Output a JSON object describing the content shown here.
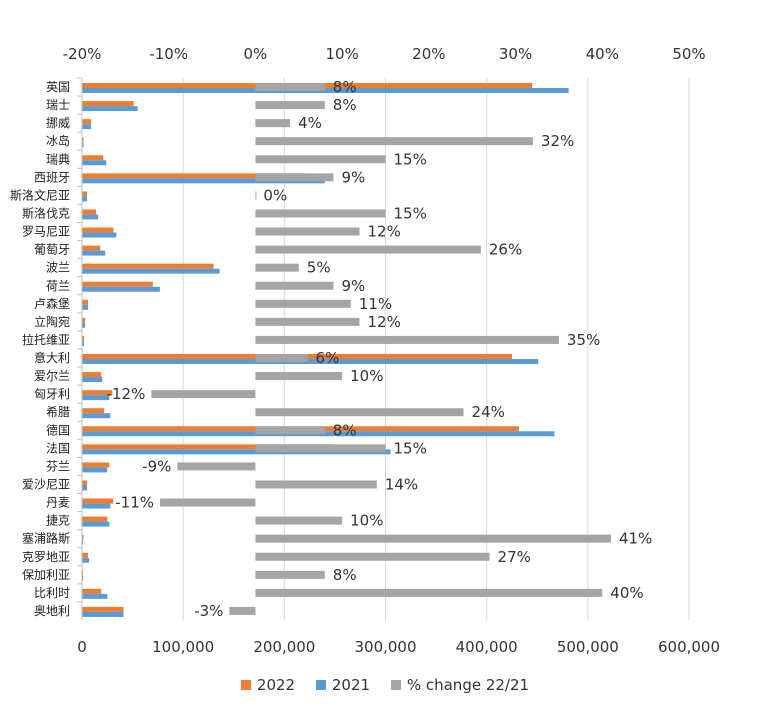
{
  "chart_data": {
    "type": "bar",
    "orientation": "horizontal",
    "categories": [
      "英国",
      "瑞士",
      "挪威",
      "冰岛",
      "瑞典",
      "西班牙",
      "斯洛文尼亚",
      "斯洛伐克",
      "罗马尼亚",
      "葡萄牙",
      "波兰",
      "荷兰",
      "卢森堡",
      "立陶宛",
      "拉托维亚",
      "意大利",
      "爱尔兰",
      "匈牙利",
      "希腊",
      "德国",
      "法国",
      "芬兰",
      "爱沙尼亚",
      "丹麦",
      "捷克",
      "塞浦路斯",
      "克罗地亚",
      "保加利亚",
      "比利时",
      "奥地利"
    ],
    "series": [
      {
        "name": "2022",
        "color": "#ED7D31",
        "axis": "bottom",
        "values": [
          445000,
          51000,
          9000,
          1500,
          21000,
          220000,
          5000,
          14000,
          31000,
          18000,
          130000,
          70000,
          6000,
          3000,
          2000,
          425000,
          19000,
          30000,
          22000,
          432000,
          248000,
          27000,
          5000,
          31000,
          25000,
          1500,
          6000,
          1000,
          19000,
          41000
        ]
      },
      {
        "name": "2021",
        "color": "#5B9BD5",
        "axis": "bottom",
        "values": [
          481000,
          55000,
          9000,
          1500,
          24000,
          240000,
          5000,
          16000,
          34000,
          23000,
          136000,
          77000,
          6000,
          3000,
          2000,
          451000,
          20000,
          27000,
          28000,
          467000,
          305000,
          25000,
          5000,
          28000,
          27000,
          1000,
          7000,
          1000,
          25000,
          41000
        ]
      },
      {
        "name": "% change 22/21",
        "color": "#A5A5A5",
        "axis": "top",
        "values": [
          8,
          8,
          4,
          32,
          15,
          9,
          0,
          15,
          12,
          26,
          5,
          9,
          11,
          12,
          35,
          6,
          10,
          -12,
          24,
          8,
          15,
          -9,
          14,
          -11,
          10,
          41,
          27,
          8,
          40,
          -3
        ]
      }
    ],
    "data_labels": [
      "8%",
      "8%",
      "4%",
      "32%",
      "15%",
      "9%",
      "0%",
      "15%",
      "12%",
      "26%",
      "5%",
      "9%",
      "11%",
      "12%",
      "35%",
      "6%",
      "10%",
      "-12%",
      "24%",
      "8%",
      "15%",
      "-9%",
      "14%",
      "-11%",
      "10%",
      "41%",
      "27%",
      "8%",
      "40%",
      "-3%"
    ],
    "x_axis_bottom": {
      "range": [
        0,
        600000
      ],
      "ticks": [
        "0",
        "100,000",
        "200,000",
        "300,000",
        "400,000",
        "500,000",
        "600,000"
      ]
    },
    "x_axis_top": {
      "range": [
        -20,
        50
      ],
      "ticks": [
        "-20%",
        "-10%",
        "0%",
        "10%",
        "20%",
        "30%",
        "40%",
        "50%"
      ]
    },
    "grid": "vertical",
    "legend": {
      "position": "bottom",
      "items": [
        "2022",
        "2021",
        "% change 22/21"
      ]
    },
    "title": "",
    "xlabel": "",
    "ylabel": ""
  }
}
